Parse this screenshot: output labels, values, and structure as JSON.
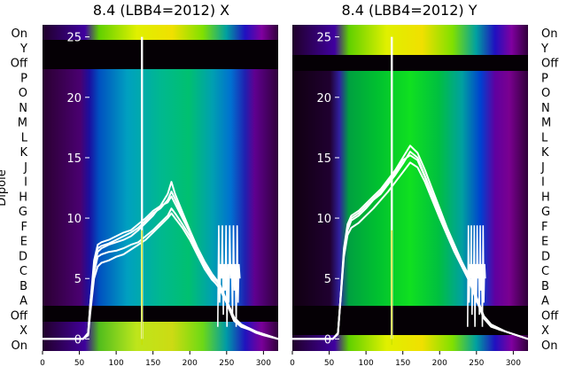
{
  "figure": {
    "ylabel": "Dipole",
    "row_labels_left": [
      "On",
      "Y",
      "Off",
      "P",
      "O",
      "N",
      "M",
      "L",
      "K",
      "J",
      "I",
      "H",
      "G",
      "F",
      "E",
      "D",
      "C",
      "B",
      "A",
      "Off",
      "X",
      "On"
    ],
    "row_labels_right": [
      "On",
      "Y",
      "Off",
      "P",
      "O",
      "N",
      "M",
      "L",
      "K",
      "J",
      "I",
      "H",
      "G",
      "F",
      "E",
      "D",
      "C",
      "B",
      "A",
      "Off",
      "X",
      "On"
    ]
  },
  "colors": {
    "background_dark": "#0a0008",
    "off_band": "#050005",
    "edge_purple": "#7a0090",
    "trace": "#ffffff",
    "spike": "#c8e000"
  },
  "chart_data": [
    {
      "type": "line",
      "title": "8.4 (LBB4=2012) X",
      "xlabel": "",
      "ylabel": "Dipole",
      "xlim": [
        0,
        320
      ],
      "ylim": [
        -1,
        26
      ],
      "xticks": [
        "0",
        "50",
        "100",
        "150",
        "200",
        "250",
        "300"
      ],
      "yticks": [
        "0",
        "5",
        "10",
        "15",
        "20",
        "25"
      ],
      "grid": false,
      "series": [
        {
          "x": [
            0,
            55,
            62,
            65,
            70,
            75,
            80,
            90,
            100,
            110,
            120,
            130,
            140,
            150,
            160,
            170,
            175,
            180,
            190,
            200,
            210,
            220,
            230,
            240,
            250,
            260,
            270,
            280,
            290,
            300,
            320
          ],
          "values": [
            0,
            0,
            0.5,
            3,
            6.5,
            7.8,
            8,
            8.2,
            8.5,
            8.8,
            9.0,
            9.5,
            10.0,
            10.6,
            11.0,
            11.3,
            11.8,
            11.2,
            10.0,
            8.8,
            7.5,
            6.2,
            5.2,
            4.5,
            3.0,
            1.5,
            1.0,
            0.8,
            0.6,
            0.4,
            0
          ]
        },
        {
          "x": [
            0,
            55,
            62,
            65,
            70,
            75,
            80,
            90,
            100,
            110,
            120,
            130,
            140,
            150,
            160,
            170,
            175,
            180,
            190,
            200,
            210,
            220,
            230,
            240,
            250,
            260,
            270,
            280,
            290,
            300,
            320
          ],
          "values": [
            0,
            0,
            0.5,
            3,
            6.0,
            7.2,
            7.5,
            7.8,
            8.0,
            8.2,
            8.5,
            9.0,
            9.6,
            10.2,
            11.0,
            12.0,
            13.0,
            12.0,
            10.5,
            9.0,
            7.6,
            6.4,
            5.4,
            4.6,
            3.2,
            1.8,
            1.2,
            0.9,
            0.6,
            0.4,
            0
          ]
        },
        {
          "x": [
            0,
            55,
            62,
            65,
            70,
            75,
            80,
            90,
            100,
            110,
            120,
            130,
            140,
            150,
            160,
            170,
            175,
            180,
            190,
            200,
            210,
            220,
            230,
            240,
            250,
            260,
            270,
            280,
            290,
            300,
            320
          ],
          "values": [
            0,
            0,
            0.4,
            2.5,
            5.5,
            6.8,
            7.0,
            7.2,
            7.3,
            7.5,
            7.8,
            8.0,
            8.5,
            9.0,
            9.6,
            10.2,
            10.8,
            10.4,
            9.5,
            8.5,
            7.2,
            6.0,
            5.0,
            4.2,
            3.0,
            1.6,
            1.1,
            0.8,
            0.6,
            0.4,
            0
          ]
        },
        {
          "x": [
            0,
            55,
            62,
            65,
            70,
            75,
            80,
            90,
            100,
            110,
            120,
            130,
            140,
            150,
            160,
            170,
            175,
            180,
            190,
            200,
            210,
            220,
            230,
            240,
            250,
            260,
            270,
            280,
            290,
            300,
            320
          ],
          "values": [
            0,
            0,
            0.4,
            2.8,
            6.2,
            7.5,
            7.7,
            7.9,
            8.2,
            8.5,
            8.8,
            9.2,
            9.8,
            10.4,
            10.8,
            11.5,
            12.2,
            11.6,
            10.2,
            8.9,
            7.4,
            6.2,
            5.3,
            4.6,
            3.1,
            1.7,
            1.1,
            0.9,
            0.6,
            0.4,
            0
          ]
        },
        {
          "x": [
            0,
            55,
            62,
            65,
            70,
            75,
            80,
            90,
            100,
            110,
            120,
            130,
            140,
            150,
            160,
            170,
            175,
            180,
            190,
            200,
            210,
            220,
            230,
            240,
            250,
            260,
            270,
            280,
            290,
            300,
            320
          ],
          "values": [
            0,
            0,
            0.3,
            2.2,
            5.0,
            6.0,
            6.3,
            6.5,
            6.8,
            7.0,
            7.4,
            7.8,
            8.2,
            8.8,
            9.4,
            10.0,
            10.4,
            10.0,
            9.2,
            8.2,
            7.0,
            5.8,
            4.9,
            4.3,
            3.0,
            1.5,
            1.0,
            0.8,
            0.5,
            0.3,
            0
          ]
        }
      ],
      "spike": {
        "x": 135,
        "y": 25
      },
      "hf_burst": {
        "x_start": 238,
        "x_end": 268
      }
    },
    {
      "type": "line",
      "title": "8.4 (LBB4=2012) Y",
      "xlabel": "",
      "ylabel": "",
      "xlim": [
        0,
        320
      ],
      "ylim": [
        -1,
        26
      ],
      "xticks": [
        "0",
        "50",
        "100",
        "150",
        "200",
        "250",
        "300"
      ],
      "yticks": [
        "0",
        "5",
        "10",
        "15",
        "20",
        "25"
      ],
      "grid": false,
      "series": [
        {
          "x": [
            0,
            55,
            62,
            65,
            70,
            75,
            80,
            90,
            100,
            110,
            120,
            130,
            140,
            150,
            160,
            170,
            180,
            190,
            200,
            210,
            220,
            230,
            240,
            250,
            260,
            270,
            280,
            290,
            300,
            320
          ],
          "values": [
            0,
            0,
            0.5,
            3,
            7.0,
            9.0,
            9.8,
            10.2,
            10.8,
            11.5,
            12.0,
            12.8,
            13.6,
            14.5,
            15.5,
            15.0,
            13.5,
            12.0,
            10.5,
            9.0,
            7.6,
            6.2,
            5.0,
            3.4,
            1.8,
            1.1,
            0.8,
            0.6,
            0.4,
            0
          ]
        },
        {
          "x": [
            0,
            55,
            62,
            65,
            70,
            75,
            80,
            90,
            100,
            110,
            120,
            130,
            140,
            150,
            160,
            170,
            180,
            190,
            200,
            210,
            220,
            230,
            240,
            250,
            260,
            270,
            280,
            290,
            300,
            320
          ],
          "values": [
            0,
            0,
            0.5,
            3,
            7.5,
            9.5,
            10.2,
            10.6,
            11.2,
            11.8,
            12.4,
            13.2,
            14.0,
            15.0,
            16.0,
            15.4,
            14.0,
            12.4,
            10.8,
            9.2,
            7.8,
            6.4,
            5.2,
            3.5,
            1.9,
            1.2,
            0.9,
            0.6,
            0.4,
            0
          ]
        },
        {
          "x": [
            0,
            55,
            62,
            65,
            70,
            75,
            80,
            90,
            100,
            110,
            120,
            130,
            140,
            150,
            160,
            170,
            180,
            190,
            200,
            210,
            220,
            230,
            240,
            250,
            260,
            270,
            280,
            290,
            300,
            320
          ],
          "values": [
            0,
            0,
            0.4,
            2.8,
            6.8,
            8.6,
            9.2,
            9.6,
            10.2,
            10.8,
            11.5,
            12.2,
            13.0,
            13.8,
            14.6,
            14.2,
            13.0,
            11.5,
            10.0,
            8.6,
            7.2,
            6.0,
            4.8,
            3.2,
            1.7,
            1.0,
            0.8,
            0.6,
            0.4,
            0
          ]
        },
        {
          "x": [
            0,
            55,
            62,
            65,
            70,
            75,
            80,
            90,
            100,
            110,
            120,
            130,
            140,
            150,
            160,
            170,
            180,
            190,
            200,
            210,
            220,
            230,
            240,
            250,
            260,
            270,
            280,
            290,
            300,
            320
          ],
          "values": [
            0,
            0,
            0.5,
            3,
            7.2,
            9.2,
            10.0,
            10.4,
            11.0,
            11.6,
            12.2,
            13.0,
            13.8,
            14.8,
            15.2,
            14.8,
            13.4,
            11.8,
            10.2,
            8.8,
            7.4,
            6.1,
            4.9,
            3.3,
            1.8,
            1.1,
            0.8,
            0.6,
            0.4,
            0
          ]
        }
      ],
      "spike": {
        "x": 135,
        "y": 25
      },
      "hf_burst": {
        "x_start": 238,
        "x_end": 262
      }
    }
  ]
}
